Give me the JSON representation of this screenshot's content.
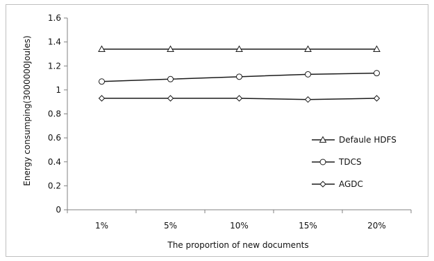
{
  "chart_data": {
    "type": "line",
    "categories": [
      "1%",
      "5%",
      "10%",
      "15%",
      "20%"
    ],
    "ylim": [
      0,
      1.6
    ],
    "yticks": [
      "0",
      "0.2",
      "0.4",
      "0.6",
      "0.8",
      "1",
      "1.2",
      "1.4",
      "1.6"
    ],
    "xlabel": "The proportion of new documents",
    "ylabel": "Energy consumping(3000000Joules)",
    "grid": false,
    "legend_position": "right",
    "series": [
      {
        "name": "Defaule HDFS",
        "marker": "triangle",
        "values": [
          1.34,
          1.34,
          1.34,
          1.34,
          1.34
        ]
      },
      {
        "name": "TDCS",
        "marker": "circle",
        "values": [
          1.07,
          1.09,
          1.11,
          1.13,
          1.14
        ]
      },
      {
        "name": "AGDC",
        "marker": "diamond",
        "values": [
          0.93,
          0.93,
          0.93,
          0.92,
          0.93
        ]
      }
    ],
    "colors": {
      "line": "#1a1a1a",
      "axis": "#808080",
      "marker_fill": "#ffffff"
    }
  }
}
